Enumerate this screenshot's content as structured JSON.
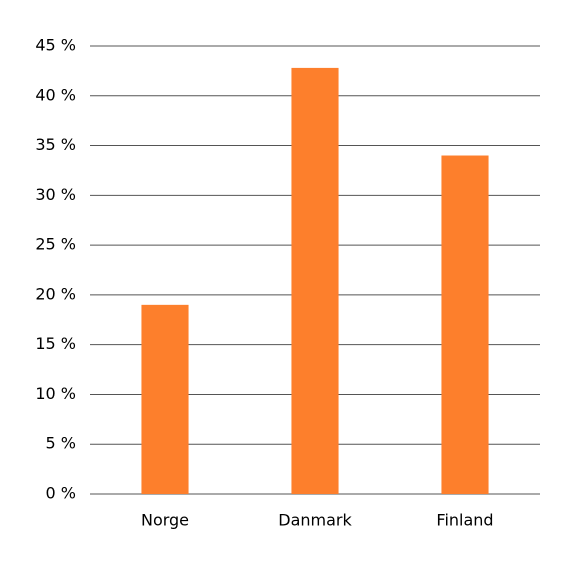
{
  "chart_data": {
    "type": "bar",
    "categories": [
      "Norge",
      "Danmark",
      "Finland"
    ],
    "values": [
      19,
      42.8,
      34
    ],
    "color": "#fd7f2c",
    "ylim": [
      0,
      45
    ],
    "yticks": [
      {
        "value": 0,
        "label": "0 %"
      },
      {
        "value": 5,
        "label": "5 %"
      },
      {
        "value": 10,
        "label": "10 %"
      },
      {
        "value": 15,
        "label": "15 %"
      },
      {
        "value": 20,
        "label": "20 %"
      },
      {
        "value": 25,
        "label": "25 %"
      },
      {
        "value": 30,
        "label": "30 %"
      },
      {
        "value": 35,
        "label": "35 %"
      },
      {
        "value": 40,
        "label": "40 %"
      },
      {
        "value": 45,
        "label": "45 %"
      }
    ],
    "grid": true
  }
}
